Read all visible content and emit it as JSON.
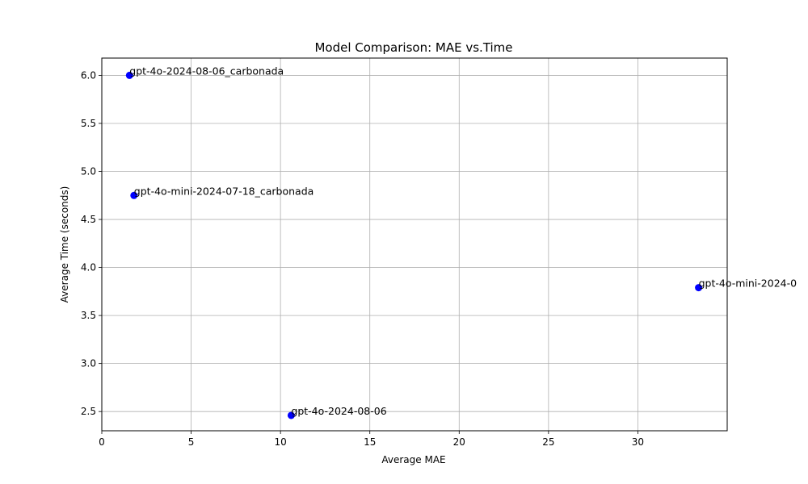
{
  "chart_data": {
    "type": "scatter",
    "title": "Model Comparison: MAE vs.Time",
    "xlabel": "Average MAE",
    "ylabel": "Average Time (seconds)",
    "xlim": [
      0,
      35
    ],
    "ylim": [
      2.3,
      6.18
    ],
    "x_ticks": [
      0,
      5,
      10,
      15,
      20,
      25,
      30
    ],
    "y_ticks": [
      2.5,
      3.0,
      3.5,
      4.0,
      4.5,
      5.0,
      5.5,
      6.0
    ],
    "grid": true,
    "legend": "none",
    "marker_color": "#0000ff",
    "points": [
      {
        "label": "gpt-4o-2024-08-06_carbonada",
        "x": 1.55,
        "y": 6.0
      },
      {
        "label": "gpt-4o-mini-2024-07-18_carbonada",
        "x": 1.8,
        "y": 4.75
      },
      {
        "label": "gpt-4o-mini-2024-0",
        "x": 33.4,
        "y": 3.79
      },
      {
        "label": "gpt-4o-2024-08-06",
        "x": 10.6,
        "y": 2.46
      }
    ]
  }
}
